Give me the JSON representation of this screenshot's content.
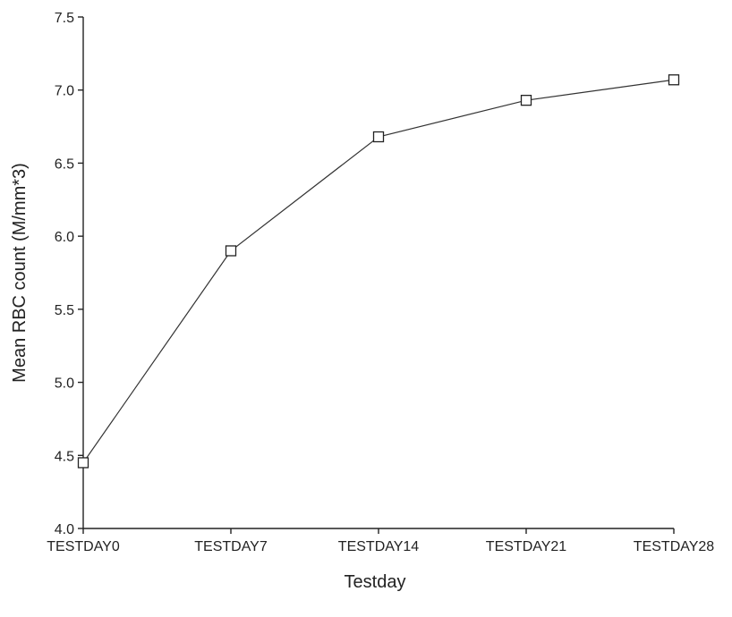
{
  "chart_data": {
    "type": "line",
    "title": "",
    "xlabel": "Testday",
    "ylabel": "Mean RBC count (M/mm*3)",
    "categories": [
      "TESTDAY0",
      "TESTDAY7",
      "TESTDAY14",
      "TESTDAY21",
      "TESTDAY28"
    ],
    "series": [
      {
        "values": [
          4.45,
          5.9,
          6.68,
          6.93,
          7.07
        ]
      }
    ],
    "ylim": [
      4.0,
      7.5
    ],
    "yticks": [
      4.0,
      4.5,
      5.0,
      5.5,
      6.0,
      6.5,
      7.0,
      7.5
    ],
    "ytick_labels": [
      "4.0",
      "4.5",
      "5.0",
      "5.5",
      "6.0",
      "6.5",
      "7.0",
      "7.5"
    ],
    "grid": false,
    "marker": "open-square",
    "colors": {
      "line": "#333333",
      "marker_edge": "#222222",
      "background": "#ffffff"
    }
  }
}
